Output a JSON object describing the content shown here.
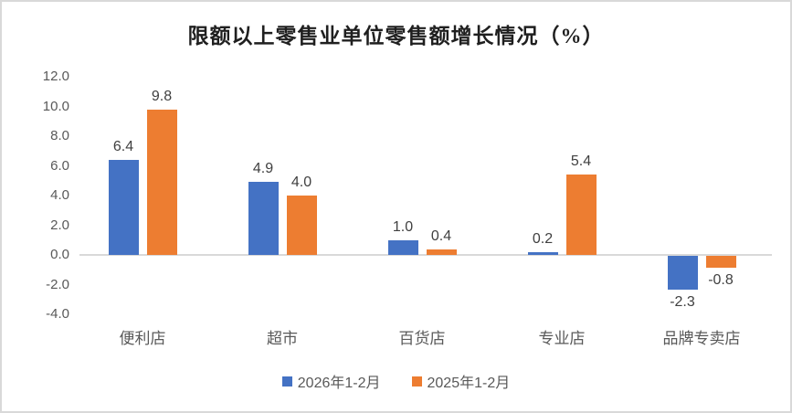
{
  "window": {
    "background_color": "#ffffff",
    "border_color": "#d9d9d9"
  },
  "chart_data": {
    "type": "bar",
    "title": "限额以上零售业单位零售额增长情况（%）",
    "xlabel": "",
    "ylabel": "",
    "categories": [
      "便利店",
      "超市",
      "百货店",
      "专业店",
      "品牌专卖店"
    ],
    "series": [
      {
        "name": "2026年1-2月",
        "color": "#4472C4",
        "values": [
          6.4,
          4.9,
          1.0,
          0.2,
          -2.3
        ]
      },
      {
        "name": "2025年1-2月",
        "color": "#ED7D31",
        "values": [
          9.8,
          4.0,
          0.4,
          5.4,
          -0.8
        ]
      }
    ],
    "ylim": [
      -4.0,
      12.0
    ],
    "y_ticks": [
      "12.0",
      "10.0",
      "8.0",
      "6.0",
      "4.0",
      "2.0",
      "0.0",
      "-2.0",
      "-4.0"
    ],
    "grid": false,
    "data_labels": true,
    "legend_position": "bottom",
    "axis_line_color": "#d9d9d9",
    "tick_label_color": "#595959",
    "data_label_color": "#404040",
    "title_color": "#1f1f1f"
  }
}
